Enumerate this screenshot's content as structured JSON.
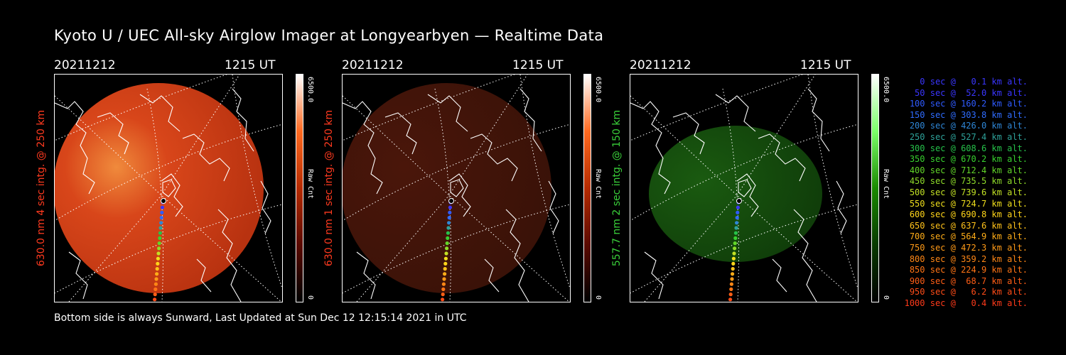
{
  "title": "Kyoto U / UEC All-sky Airglow Imager at Longyearbyen — Realtime Data",
  "footer": "Bottom side is always Sunward, Last Updated at Sun Dec 12 12:15:14 2021 in UTC",
  "panels": [
    {
      "date": "20211212",
      "time": "1215 UT",
      "side_label": "630.0 nm 4 sec intg. @ 250 km",
      "label_color": "#ff3a1f",
      "cbar_max": "6500.0",
      "cbar_unit": "Raw Cnt",
      "cbar_min": "0",
      "colormap": [
        "#000000",
        "#5a0a00",
        "#b62b00",
        "#ff6a20",
        "#ffffff"
      ],
      "brightness": "bright"
    },
    {
      "date": "20211212",
      "time": "1215 UT",
      "side_label": "630.0 nm 1 sec intg. @ 250 km",
      "label_color": "#ff3a1f",
      "cbar_max": "6500.0",
      "cbar_unit": "Raw Cnt",
      "cbar_min": "0",
      "colormap": [
        "#000000",
        "#5a0a00",
        "#b62b00",
        "#ff6a20",
        "#ffffff"
      ],
      "brightness": "dim"
    },
    {
      "date": "20211212",
      "time": "1215 UT",
      "side_label": "557.7 nm 2 sec intg. @ 150 km",
      "label_color": "#3ad13a",
      "cbar_max": "6500.0",
      "cbar_unit": "Raw Cnt",
      "cbar_min": "0",
      "colormap": [
        "#000000",
        "#083a00",
        "#1a8a00",
        "#7cff6a",
        "#ffffff"
      ],
      "brightness": "green"
    }
  ],
  "legend": [
    {
      "text": "0 sec @   0.1 km alt.",
      "color": "#3a36ff"
    },
    {
      "text": "50 sec @  52.0 km alt.",
      "color": "#3a36ff"
    },
    {
      "text": "100 sec @ 160.2 km alt.",
      "color": "#2f5bff"
    },
    {
      "text": "150 sec @ 303.8 km alt.",
      "color": "#2f6cff"
    },
    {
      "text": "200 sec @ 426.0 km alt.",
      "color": "#2e86d6"
    },
    {
      "text": "250 sec @ 527.4 km alt.",
      "color": "#2ea29a"
    },
    {
      "text": "300 sec @ 608.6 km alt.",
      "color": "#26c24a"
    },
    {
      "text": "350 sec @ 670.2 km alt.",
      "color": "#38d12f"
    },
    {
      "text": "400 sec @ 712.4 km alt.",
      "color": "#62d629"
    },
    {
      "text": "450 sec @ 735.5 km alt.",
      "color": "#8fdc2a"
    },
    {
      "text": "500 sec @ 739.6 km alt.",
      "color": "#c1e025"
    },
    {
      "text": "550 sec @ 724.7 km alt.",
      "color": "#f0df1c"
    },
    {
      "text": "600 sec @ 690.8 km alt.",
      "color": "#ffd51a"
    },
    {
      "text": "650 sec @ 637.6 km alt.",
      "color": "#ffc21a"
    },
    {
      "text": "700 sec @ 564.9 km alt.",
      "color": "#ffad18"
    },
    {
      "text": "750 sec @ 472.3 km alt.",
      "color": "#ff9a17"
    },
    {
      "text": "800 sec @ 359.2 km alt.",
      "color": "#ff8716"
    },
    {
      "text": "850 sec @ 224.9 km alt.",
      "color": "#ff7415"
    },
    {
      "text": "900 sec @  68.7 km alt.",
      "color": "#ff5e16"
    },
    {
      "text": "950 sec @   6.2 km alt.",
      "color": "#ff4c18"
    },
    {
      "text": "1000 sec @   0.4 km alt.",
      "color": "#ff3a1a"
    }
  ]
}
